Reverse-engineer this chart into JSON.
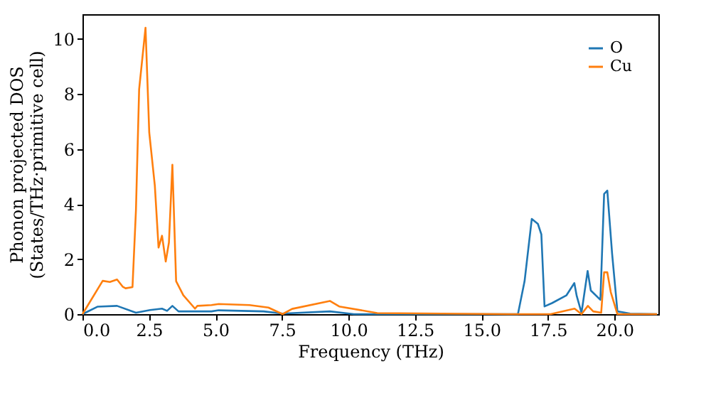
{
  "chart_data": {
    "type": "line",
    "xlabel": "Frequency (THz)",
    "ylabel": "Phonon projected DOS\n(States/THz·primitive cell)",
    "xlim": [
      0,
      21.65
    ],
    "ylim": [
      0,
      10.9
    ],
    "xticks": [
      {
        "value": 0,
        "label": "0.0"
      },
      {
        "value": 2.5,
        "label": "2.5"
      },
      {
        "value": 5,
        "label": "5.0"
      },
      {
        "value": 7.5,
        "label": "7.5"
      },
      {
        "value": 10,
        "label": "10.0"
      },
      {
        "value": 12.5,
        "label": "12.5"
      },
      {
        "value": 15,
        "label": "15.0"
      },
      {
        "value": 17.5,
        "label": "17.5"
      },
      {
        "value": 20,
        "label": "20.0"
      }
    ],
    "yticks": [
      0,
      2,
      4,
      6,
      8,
      10
    ],
    "grid": false,
    "legend": "top right",
    "line_style": "solid",
    "marker": "none",
    "series": [
      {
        "name": "O",
        "color": "#1f77b4",
        "x": [
          0,
          0.56,
          1.3,
          2.01,
          2.54,
          2.99,
          3.18,
          3.38,
          3.61,
          4.85,
          5.12,
          6.81,
          7.52,
          9.3,
          10.2,
          16.0,
          16.37,
          16.62,
          16.89,
          17.12,
          17.25,
          17.37,
          17.65,
          18.19,
          18.49,
          18.58,
          18.76,
          18.99,
          19.11,
          19.47,
          19.61,
          19.73,
          19.91,
          20.11,
          20.59,
          21.6
        ],
        "values": [
          0,
          0.27,
          0.3,
          0.05,
          0.15,
          0.2,
          0.12,
          0.3,
          0.1,
          0.1,
          0.14,
          0.1,
          0.02,
          0.1,
          0,
          0,
          0,
          1.2,
          3.46,
          3.28,
          2.9,
          0.28,
          0.4,
          0.68,
          1.13,
          0.66,
          0.05,
          1.57,
          0.86,
          0.52,
          4.37,
          4.49,
          2.2,
          0.1,
          0.02,
          0
        ]
      },
      {
        "name": "Cu",
        "color": "#ff7f0e",
        "x": [
          0,
          0.76,
          1.03,
          1.3,
          1.51,
          1.62,
          1.88,
          2.01,
          2.13,
          2.37,
          2.51,
          2.72,
          2.86,
          2.99,
          3.13,
          3.25,
          3.38,
          3.52,
          3.79,
          4.23,
          4.32,
          4.85,
          5.12,
          6.28,
          6.99,
          7.52,
          7.88,
          9.3,
          9.65,
          11.08,
          16.0,
          17.6,
          18.5,
          18.76,
          19.0,
          19.2,
          19.5,
          19.61,
          19.73,
          19.86,
          20.11,
          21.6
        ],
        "values": [
          0,
          1.21,
          1.17,
          1.26,
          1.0,
          0.94,
          0.98,
          3.77,
          8.17,
          10.41,
          6.6,
          4.67,
          2.42,
          2.85,
          1.91,
          2.6,
          5.43,
          1.2,
          0.69,
          0.2,
          0.3,
          0.33,
          0.37,
          0.33,
          0.24,
          0,
          0.19,
          0.48,
          0.28,
          0.04,
          0,
          0,
          0.2,
          0,
          0.3,
          0.1,
          0.05,
          1.52,
          1.52,
          0.8,
          0,
          0
        ]
      }
    ]
  }
}
